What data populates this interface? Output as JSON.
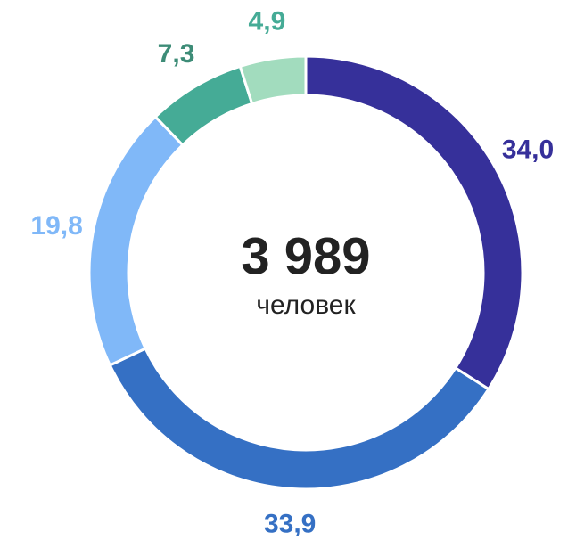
{
  "chart_data": {
    "type": "donut",
    "categories": [
      null,
      null,
      null,
      null,
      null
    ],
    "values": [
      34.0,
      33.9,
      19.8,
      7.3,
      4.9
    ],
    "value_labels": [
      "34,0",
      "33,9",
      "19,8",
      "7,3",
      "4,9"
    ],
    "colors": [
      "#36309a",
      "#3570c4",
      "#80b8f8",
      "#45ab96",
      "#a2dcbe"
    ],
    "label_colors": [
      "#36309a",
      "#3570c4",
      "#80b8f8",
      "#3d8c77",
      "#45ab96"
    ],
    "center_label": "3 989",
    "center_sublabel": "человек"
  }
}
